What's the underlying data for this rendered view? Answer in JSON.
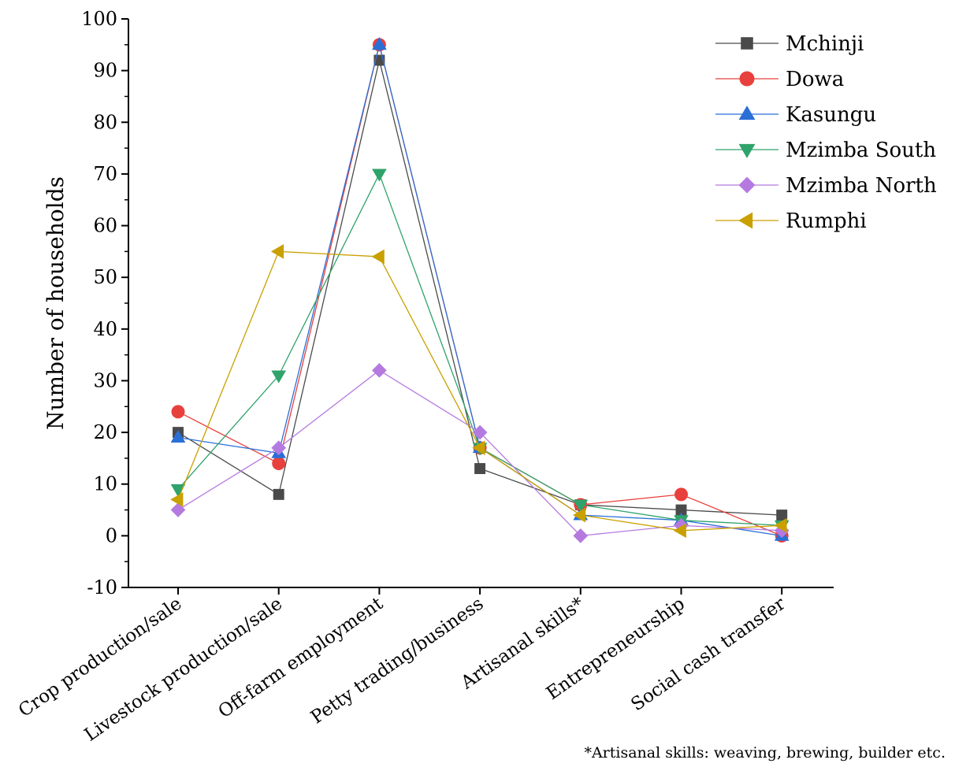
{
  "chart_data": {
    "type": "line",
    "categories": [
      "Crop production/sale",
      "Livestock production/sale",
      "Off-farm employment",
      "Petty trading/business",
      "Artisanal skills*",
      "Entrepreneurship",
      "Social cash transfer"
    ],
    "ylabel": "Number of households",
    "xlabel": "",
    "ylim": [
      -10,
      100
    ],
    "yticks": [
      "-10",
      "0",
      "10",
      "20",
      "30",
      "40",
      "50",
      "60",
      "70",
      "80",
      "90",
      "100"
    ],
    "legend_position": "top-right",
    "footnote": "*Artisanal skills: weaving, brewing, builder etc.",
    "series": [
      {
        "name": "Mchinji",
        "color": "#4a4a4a",
        "marker": "square",
        "values": [
          20,
          8,
          92,
          13,
          6,
          5,
          4
        ]
      },
      {
        "name": "Dowa",
        "color": "#e8403d",
        "marker": "circle",
        "values": [
          24,
          14,
          95,
          17,
          6,
          8,
          0
        ]
      },
      {
        "name": "Kasungu",
        "color": "#2a6fd6",
        "marker": "triangle-up",
        "values": [
          19,
          16,
          95,
          17,
          4,
          3,
          0
        ]
      },
      {
        "name": "Mzimba South",
        "color": "#2fa36b",
        "marker": "triangle-down",
        "values": [
          9,
          31,
          70,
          17,
          6,
          3,
          2
        ]
      },
      {
        "name": "Mzimba North",
        "color": "#b57ae0",
        "marker": "diamond",
        "values": [
          5,
          17,
          32,
          20,
          0,
          2,
          1
        ]
      },
      {
        "name": "Rumphi",
        "color": "#c9a000",
        "marker": "triangle-left",
        "values": [
          7,
          55,
          54,
          17,
          4,
          1,
          2
        ]
      }
    ]
  }
}
